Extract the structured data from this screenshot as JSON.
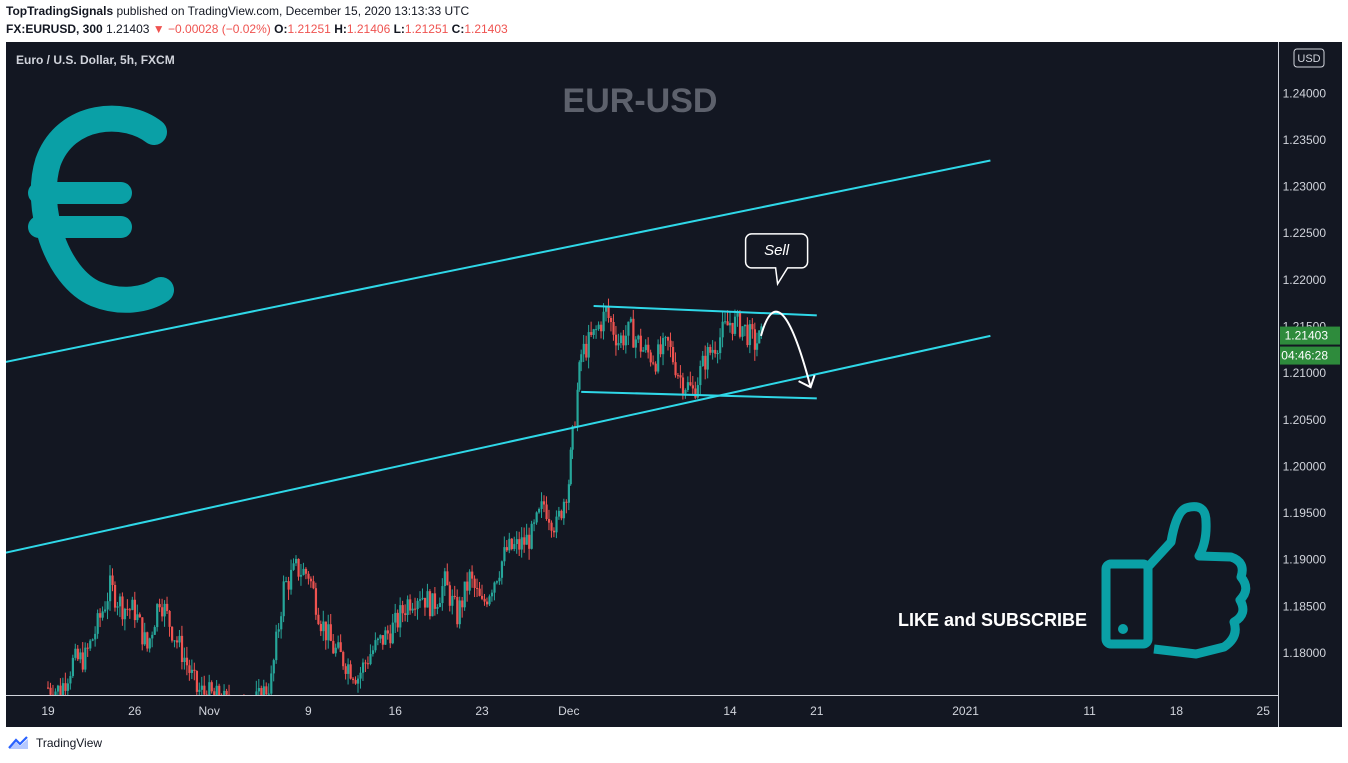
{
  "header": {
    "line1": {
      "author": "TopTradingSignals",
      "rest": " published on TradingView.com, December 15, 2020 13:13:33 UTC"
    },
    "line2": {
      "symbol": "FX:EURUSD, 300",
      "last": "1.21403",
      "change": "−0.00028 (−0.02%)",
      "o_label": "O:",
      "o": "1.21251",
      "h_label": "H:",
      "h": "1.21406",
      "l_label": "L:",
      "l": "1.21251",
      "c_label": "C:",
      "c": "1.21403"
    }
  },
  "footer": {
    "brand": "TradingView"
  },
  "colors": {
    "background": "#131722",
    "up": "#26a69a",
    "down": "#ef5350",
    "trendline": "#2fd8e8",
    "icon": "#0aa0a6",
    "price_tag": "#2e8b3c"
  },
  "chart_data": {
    "type": "candlestick",
    "legend": "Euro / U.S. Dollar, 5h, FXCM",
    "watermark": "EUR-USD",
    "currency": "USD",
    "y_ticks": [
      "1.24000",
      "1.23500",
      "1.23000",
      "1.22500",
      "1.22000",
      "1.21500",
      "1.21000",
      "1.20500",
      "1.20000",
      "1.19500",
      "1.19000",
      "1.18500",
      "1.18000"
    ],
    "y_range": [
      1.1755,
      1.2455
    ],
    "x_ticks": [
      {
        "label": "19",
        "day": 0
      },
      {
        "label": "26",
        "day": 7
      },
      {
        "label": "Nov",
        "day": 13
      },
      {
        "label": "9",
        "day": 21
      },
      {
        "label": "16",
        "day": 28
      },
      {
        "label": "23",
        "day": 35
      },
      {
        "label": "Dec",
        "day": 42
      },
      {
        "label": "14",
        "day": 55
      },
      {
        "label": "21",
        "day": 62
      },
      {
        "label": "2021",
        "day": 74
      },
      {
        "label": "11",
        "day": 84
      },
      {
        "label": "18",
        "day": 91
      },
      {
        "label": "25",
        "day": 98
      }
    ],
    "last_price_label": "1.21403",
    "countdown_label": "04:46:28",
    "last_price": 1.21403,
    "path": [
      [
        0,
        1.1763
      ],
      [
        1,
        1.176
      ],
      [
        2,
        1.179
      ],
      [
        3,
        1.1795
      ],
      [
        4,
        1.183
      ],
      [
        5,
        1.187
      ],
      [
        6,
        1.185
      ],
      [
        7,
        1.1845
      ],
      [
        8,
        1.1805
      ],
      [
        9,
        1.186
      ],
      [
        10,
        1.1825
      ],
      [
        11,
        1.1795
      ],
      [
        12,
        1.176
      ],
      [
        13,
        1.1755
      ],
      [
        14,
        1.175
      ],
      [
        15,
        1.174
      ],
      [
        16,
        1.174
      ],
      [
        17,
        1.175
      ],
      [
        18,
        1.177
      ],
      [
        19,
        1.187
      ],
      [
        20,
        1.189
      ],
      [
        21,
        1.1885
      ],
      [
        22,
        1.1835
      ],
      [
        23,
        1.1805
      ],
      [
        24,
        1.179
      ],
      [
        25,
        1.1775
      ],
      [
        26,
        1.18
      ],
      [
        27,
        1.1815
      ],
      [
        28,
        1.183
      ],
      [
        29,
        1.1855
      ],
      [
        30,
        1.1865
      ],
      [
        31,
        1.185
      ],
      [
        32,
        1.1875
      ],
      [
        33,
        1.184
      ],
      [
        34,
        1.188
      ],
      [
        35,
        1.185
      ],
      [
        36,
        1.188
      ],
      [
        37,
        1.191
      ],
      [
        38,
        1.1915
      ],
      [
        39,
        1.1925
      ],
      [
        40,
        1.196
      ],
      [
        41,
        1.1935
      ],
      [
        42,
        1.1985
      ],
      [
        42.3,
        1.203
      ],
      [
        42.7,
        1.208
      ],
      [
        43,
        1.212
      ],
      [
        44,
        1.214
      ],
      [
        45,
        1.2165
      ],
      [
        46,
        1.2135
      ],
      [
        47,
        1.2145
      ],
      [
        48,
        1.2125
      ],
      [
        49,
        1.2115
      ],
      [
        50,
        1.213
      ],
      [
        51,
        1.2095
      ],
      [
        52,
        1.208
      ],
      [
        53,
        1.2115
      ],
      [
        54,
        1.2135
      ],
      [
        55,
        1.2155
      ],
      [
        56,
        1.215
      ],
      [
        57,
        1.2132
      ],
      [
        57.7,
        1.214
      ]
    ],
    "drawings": [
      {
        "kind": "trendline",
        "start": {
          "day": -6,
          "price": 1.2105
        },
        "end": {
          "day": 76,
          "price": 1.2328
        }
      },
      {
        "kind": "trendline",
        "start": {
          "day": -6,
          "price": 1.19
        },
        "end": {
          "day": 76,
          "price": 1.214
        }
      },
      {
        "kind": "trendline",
        "start": {
          "day": 44,
          "price": 1.2172
        },
        "end": {
          "day": 62,
          "price": 1.2162
        }
      },
      {
        "kind": "trendline",
        "start": {
          "day": 43,
          "price": 1.208
        },
        "end": {
          "day": 62,
          "price": 1.2073
        }
      },
      {
        "kind": "arrow",
        "start": {
          "day": 57.5,
          "price": 1.214
        },
        "mid": {
          "day": 59,
          "price": 1.2185
        },
        "end": {
          "day": 61.5,
          "price": 1.2085
        }
      }
    ],
    "annotations": [
      {
        "kind": "callout",
        "text": "Sell",
        "day": 59,
        "price": 1.22
      },
      {
        "kind": "text",
        "text": "LIKE and SUBSCRIBE"
      }
    ],
    "icons": [
      "euro-icon",
      "thumbs-up-icon"
    ]
  }
}
